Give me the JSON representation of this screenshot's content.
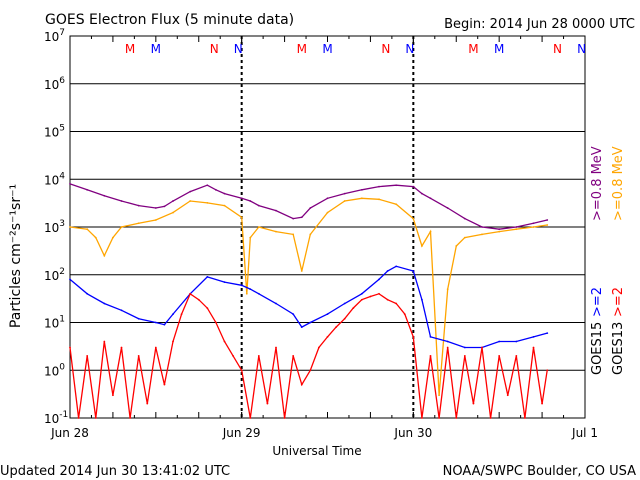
{
  "header": {
    "title": "GOES Electron Flux (5 minute data)",
    "begin": "Begin: 2014 Jun 28 0000 UTC"
  },
  "footer": {
    "updated": "Updated 2014 Jun 30 13:41:02 UTC",
    "credit": "NOAA/SWPC Boulder, CO USA"
  },
  "colors": {
    "goes13_high": "#ff0000",
    "goes15_high": "#0000ff",
    "goes13_low": "#ffa500",
    "goes15_low": "#800080",
    "grid": "#000000"
  },
  "chart_data": {
    "type": "line",
    "title": "GOES Electron Flux (5 minute data)",
    "xlabel": "Universal Time",
    "ylabel": "Particles cm⁻²s⁻¹sr⁻¹",
    "y_scale": "log",
    "ylim": [
      0.1,
      10000000
    ],
    "grid": true,
    "legend_position": "right",
    "x_ticks": [
      "Jun 28",
      "Jun 29",
      "Jun 30",
      "Jul 1"
    ],
    "y_ticks": [
      {
        "base": "10",
        "exp": "-1"
      },
      {
        "base": "10",
        "exp": "0"
      },
      {
        "base": "10",
        "exp": "1"
      },
      {
        "base": "10",
        "exp": "2"
      },
      {
        "base": "10",
        "exp": "3"
      },
      {
        "base": "10",
        "exp": "4"
      },
      {
        "base": "10",
        "exp": "5"
      },
      {
        "base": "10",
        "exp": "6"
      },
      {
        "base": "10",
        "exp": "7"
      }
    ],
    "threshold": 1000,
    "markers": [
      {
        "label": "M",
        "day": 0.35,
        "color": "#ff0000"
      },
      {
        "label": "M",
        "day": 0.5,
        "color": "#0000ff"
      },
      {
        "label": "N",
        "day": 0.84,
        "color": "#ff0000"
      },
      {
        "label": "N",
        "day": 0.98,
        "color": "#0000ff"
      },
      {
        "label": "M",
        "day": 1.35,
        "color": "#ff0000"
      },
      {
        "label": "M",
        "day": 1.5,
        "color": "#0000ff"
      },
      {
        "label": "N",
        "day": 1.84,
        "color": "#ff0000"
      },
      {
        "label": "N",
        "day": 1.98,
        "color": "#0000ff"
      },
      {
        "label": "M",
        "day": 2.35,
        "color": "#ff0000"
      },
      {
        "label": "M",
        "day": 2.5,
        "color": "#0000ff"
      },
      {
        "label": "N",
        "day": 2.84,
        "color": "#ff0000"
      },
      {
        "label": "N",
        "day": 2.98,
        "color": "#0000ff"
      }
    ],
    "legend": [
      {
        "label": ">=0.8 MeV",
        "color": "#800080"
      },
      {
        "label": ">=0.8 MeV",
        "color": "#ffa500"
      },
      {
        "label": ">=2",
        "color": "#0000ff"
      },
      {
        "label": ">=2",
        "color": "#ff0000"
      },
      {
        "label": "GOES15",
        "color": "#000000"
      },
      {
        "label": "GOES13",
        "color": "#000000"
      }
    ],
    "series": [
      {
        "name": "GOES15 >=0.8 MeV",
        "color": "#800080",
        "x": [
          0.0,
          0.1,
          0.2,
          0.3,
          0.4,
          0.5,
          0.55,
          0.6,
          0.7,
          0.8,
          0.85,
          0.9,
          1.0,
          1.05,
          1.1,
          1.2,
          1.3,
          1.35,
          1.4,
          1.5,
          1.6,
          1.7,
          1.8,
          1.9,
          2.0,
          2.05,
          2.1,
          2.2,
          2.3,
          2.4,
          2.5,
          2.6,
          2.7,
          2.78
        ],
        "y": [
          8000,
          6000,
          4500,
          3500,
          2800,
          2500,
          2700,
          3500,
          5500,
          7500,
          6000,
          5000,
          4000,
          3500,
          2800,
          2200,
          1500,
          1600,
          2500,
          4000,
          5000,
          6000,
          7000,
          7500,
          7000,
          5000,
          4000,
          2500,
          1500,
          1000,
          900,
          1000,
          1200,
          1400
        ]
      },
      {
        "name": "GOES13 >=0.8 MeV",
        "color": "#ffa500",
        "x": [
          0.0,
          0.1,
          0.15,
          0.2,
          0.25,
          0.3,
          0.4,
          0.5,
          0.6,
          0.7,
          0.8,
          0.9,
          1.0,
          1.03,
          1.05,
          1.1,
          1.2,
          1.3,
          1.35,
          1.4,
          1.5,
          1.6,
          1.7,
          1.8,
          1.9,
          2.0,
          2.05,
          2.1,
          2.15,
          2.2,
          2.25,
          2.3,
          2.4,
          2.5,
          2.6,
          2.7,
          2.78
        ],
        "y": [
          1000,
          900,
          600,
          250,
          600,
          1000,
          1200,
          1400,
          2000,
          3500,
          3200,
          2800,
          1600,
          40,
          600,
          1000,
          800,
          700,
          120,
          700,
          2000,
          3500,
          4000,
          3800,
          3000,
          1500,
          400,
          800,
          0.3,
          50,
          400,
          600,
          700,
          800,
          900,
          1000,
          1100
        ]
      },
      {
        "name": "GOES15 >=2 MeV",
        "color": "#0000ff",
        "x": [
          0.0,
          0.1,
          0.2,
          0.3,
          0.4,
          0.5,
          0.55,
          0.6,
          0.7,
          0.8,
          0.9,
          1.0,
          1.05,
          1.1,
          1.2,
          1.3,
          1.35,
          1.4,
          1.5,
          1.6,
          1.7,
          1.8,
          1.85,
          1.9,
          2.0,
          2.05,
          2.1,
          2.2,
          2.3,
          2.4,
          2.5,
          2.6,
          2.7,
          2.78
        ],
        "y": [
          80,
          40,
          25,
          18,
          12,
          10,
          9,
          15,
          40,
          90,
          70,
          60,
          50,
          40,
          25,
          15,
          8,
          10,
          15,
          25,
          40,
          80,
          120,
          150,
          120,
          30,
          5,
          4,
          3,
          3,
          4,
          4,
          5,
          6
        ]
      },
      {
        "name": "GOES13 >=2 MeV",
        "color": "#ff0000",
        "x": [
          0.0,
          0.05,
          0.1,
          0.15,
          0.2,
          0.25,
          0.3,
          0.35,
          0.4,
          0.45,
          0.5,
          0.55,
          0.6,
          0.65,
          0.7,
          0.75,
          0.8,
          0.85,
          0.9,
          0.95,
          1.0,
          1.05,
          1.1,
          1.15,
          1.2,
          1.25,
          1.3,
          1.35,
          1.4,
          1.45,
          1.5,
          1.55,
          1.6,
          1.65,
          1.7,
          1.75,
          1.8,
          1.85,
          1.9,
          1.95,
          2.0,
          2.05,
          2.1,
          2.15,
          2.2,
          2.25,
          2.3,
          2.35,
          2.4,
          2.45,
          2.5,
          2.55,
          2.6,
          2.65,
          2.7,
          2.75,
          2.78
        ],
        "y": [
          3,
          0.1,
          2,
          0.1,
          4,
          0.3,
          3,
          0.1,
          2,
          0.2,
          3,
          0.5,
          4,
          15,
          40,
          30,
          20,
          10,
          4,
          2,
          1,
          0.1,
          2,
          0.2,
          3,
          0.1,
          2,
          0.5,
          1,
          3,
          5,
          8,
          12,
          20,
          30,
          35,
          40,
          30,
          25,
          15,
          5,
          0.1,
          2,
          0.1,
          3,
          0.1,
          2,
          0.2,
          3,
          0.1,
          2,
          0.3,
          2,
          0.1,
          3,
          0.2,
          1
        ]
      }
    ]
  }
}
